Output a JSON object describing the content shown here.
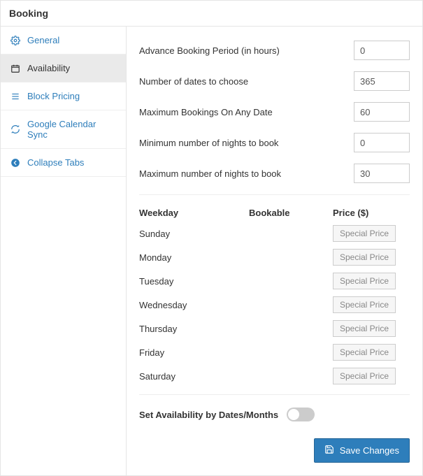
{
  "colors": {
    "accent": "#2e7ebb",
    "border": "#e5e5e5",
    "muted_text": "#888",
    "toggle_off": "#cccccc"
  },
  "header": {
    "title": "Booking"
  },
  "sidebar": {
    "items": [
      {
        "label": "General",
        "icon": "gear-icon",
        "active": false
      },
      {
        "label": "Availability",
        "icon": "calendar-icon",
        "active": true
      },
      {
        "label": "Block Pricing",
        "icon": "list-icon",
        "active": false
      },
      {
        "label": "Google Calendar Sync",
        "icon": "sync-icon",
        "active": false
      },
      {
        "label": "Collapse Tabs",
        "icon": "collapse-icon",
        "active": false
      }
    ]
  },
  "settings": {
    "rows": [
      {
        "label": "Advance Booking Period (in hours)",
        "value": "0"
      },
      {
        "label": "Number of dates to choose",
        "value": "365"
      },
      {
        "label": "Maximum Bookings On Any Date",
        "value": "60"
      },
      {
        "label": "Minimum number of nights to book",
        "value": "0"
      },
      {
        "label": "Maximum number of nights to book",
        "value": "30"
      }
    ]
  },
  "weekday_table": {
    "headers": {
      "day": "Weekday",
      "bookable": "Bookable",
      "price": "Price ($)"
    },
    "price_button_label": "Special Price",
    "rows": [
      {
        "day": "Sunday",
        "bookable": true
      },
      {
        "day": "Monday",
        "bookable": true
      },
      {
        "day": "Tuesday",
        "bookable": true
      },
      {
        "day": "Wednesday",
        "bookable": true
      },
      {
        "day": "Thursday",
        "bookable": true
      },
      {
        "day": "Friday",
        "bookable": true
      },
      {
        "day": "Saturday",
        "bookable": true
      }
    ]
  },
  "availability_toggle": {
    "label": "Set Availability by Dates/Months",
    "on": false
  },
  "footer": {
    "save_label": "Save Changes"
  }
}
